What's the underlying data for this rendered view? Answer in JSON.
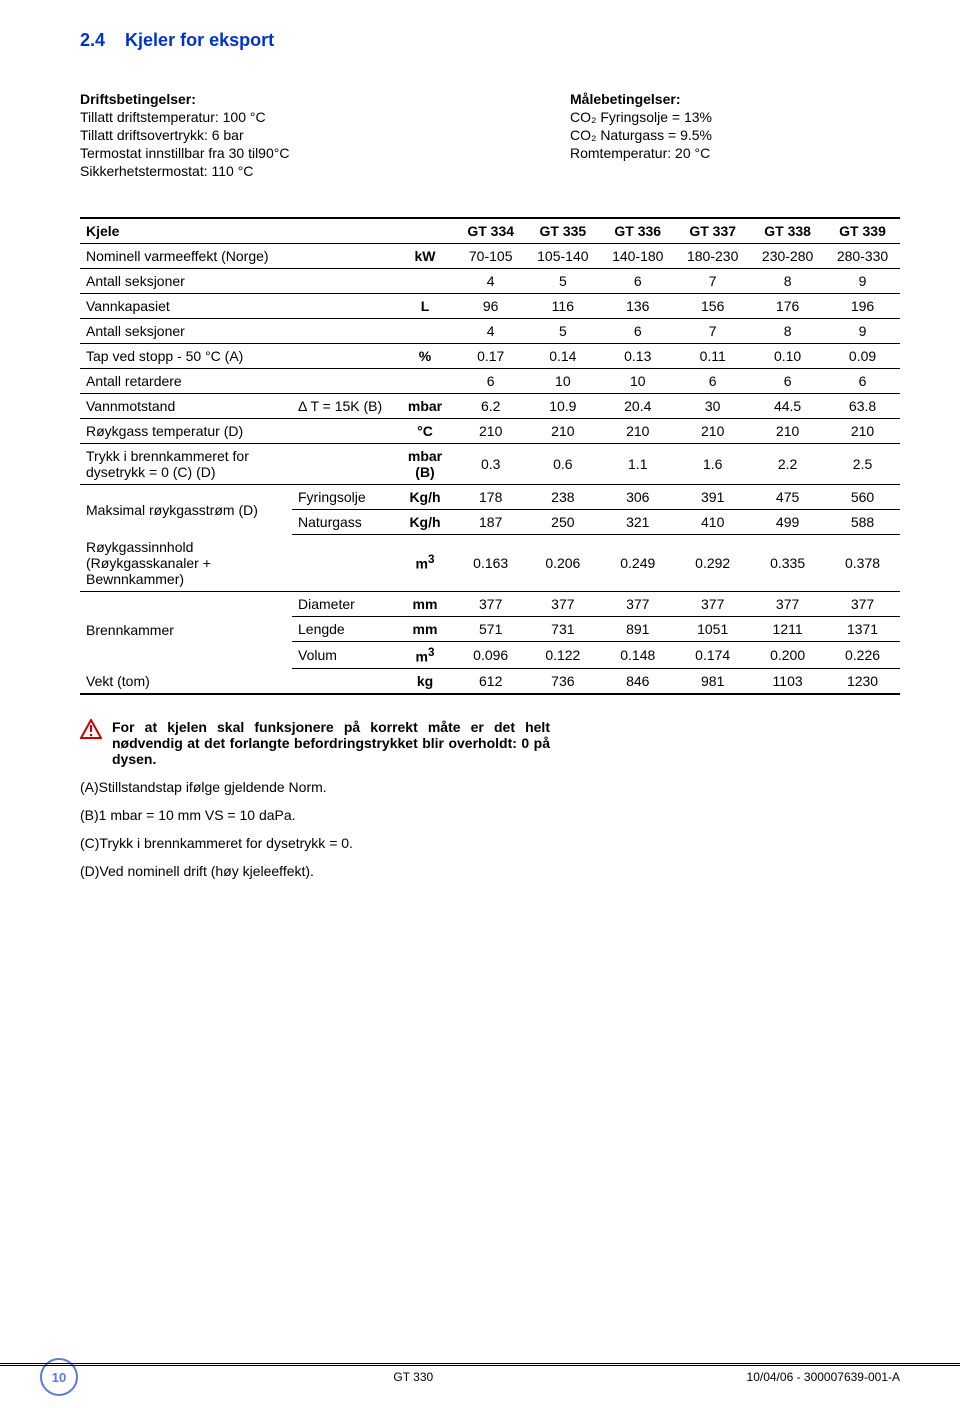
{
  "section": {
    "number_title": "2.4",
    "title": "Kjeler for eksport"
  },
  "left_block": {
    "heading": "Driftsbetingelser:",
    "lines": [
      "Tillatt driftstemperatur: 100 °C",
      "Tillatt driftsovertrykk: 6 bar",
      "Termostat innstillbar fra 30 til90°C",
      "Sikkerhetstermostat: 110 °C"
    ]
  },
  "right_block": {
    "heading": "Målebetingelser:",
    "lines": [
      "CO₂ Fyringsolje = 13%",
      "CO₂ Naturgass = 9.5%",
      "Romtemperatur: 20 °C"
    ]
  },
  "table": {
    "head": [
      "Kjele",
      "",
      "",
      "GT 334",
      "GT 335",
      "GT 336",
      "GT 337",
      "GT 338",
      "GT 339"
    ],
    "rows": [
      {
        "label": "Nominell varmeeffekt (Norge)",
        "sub": "",
        "unit": "kW",
        "vals": [
          "70-105",
          "105-140",
          "140-180",
          "180-230",
          "230-280",
          "280-330"
        ]
      },
      {
        "label": "Antall seksjoner",
        "sub": "",
        "unit": "",
        "vals": [
          "4",
          "5",
          "6",
          "7",
          "8",
          "9"
        ]
      },
      {
        "label": "Vannkapasiet",
        "sub": "",
        "unit": "L",
        "vals": [
          "96",
          "116",
          "136",
          "156",
          "176",
          "196"
        ]
      },
      {
        "label": "Antall seksjoner",
        "sub": "",
        "unit": "",
        "vals": [
          "4",
          "5",
          "6",
          "7",
          "8",
          "9"
        ]
      },
      {
        "label": "Tap ved stopp - 50 °C (A)",
        "sub": "",
        "unit": "%",
        "vals": [
          "0.17",
          "0.14",
          "0.13",
          "0.11",
          "0.10",
          "0.09"
        ]
      },
      {
        "label": "Antall retardere",
        "sub": "",
        "unit": "",
        "vals": [
          "6",
          "10",
          "10",
          "6",
          "6",
          "6"
        ]
      },
      {
        "label": "Vannmotstand",
        "sub": "Δ T = 15K (B)",
        "unit": "mbar",
        "vals": [
          "6.2",
          "10.9",
          "20.4",
          "30",
          "44.5",
          "63.8"
        ]
      },
      {
        "label": "Røykgass temperatur (D)",
        "sub": "",
        "unit": "°C",
        "vals": [
          "210",
          "210",
          "210",
          "210",
          "210",
          "210"
        ]
      },
      {
        "label": "Trykk i brennkammeret for dysetrykk = 0\n(C) (D)",
        "sub": "",
        "unit": "mbar\n(B)",
        "vals": [
          "0.3",
          "0.6",
          "1.1",
          "1.6",
          "2.2",
          "2.5"
        ]
      }
    ],
    "flow": {
      "label": "Maksimal røykgasstrøm (D)",
      "fr_label": "Fyringsolje",
      "fr_unit": "Kg/h",
      "fr_vals": [
        "178",
        "238",
        "306",
        "391",
        "475",
        "560"
      ],
      "ng_label": "Naturgass",
      "ng_unit": "Kg/h",
      "ng_vals": [
        "187",
        "250",
        "321",
        "410",
        "499",
        "588"
      ]
    },
    "smoke": {
      "label": "Røykgassinnhold\n(Røykgasskanaler +\nBewnnkammer)",
      "unit": "m³",
      "vals": [
        "0.163",
        "0.206",
        "0.249",
        "0.292",
        "0.335",
        "0.378"
      ]
    },
    "chamber": {
      "label": "Brennkammer",
      "dia_label": "Diameter",
      "dia_unit": "mm",
      "dia_vals": [
        "377",
        "377",
        "377",
        "377",
        "377",
        "377"
      ],
      "len_label": "Lengde",
      "len_unit": "mm",
      "len_vals": [
        "571",
        "731",
        "891",
        "1051",
        "1211",
        "1371"
      ],
      "vol_label": "Volum",
      "vol_unit": "m³",
      "vol_vals": [
        "0.096",
        "0.122",
        "0.148",
        "0.174",
        "0.200",
        "0.226"
      ]
    },
    "weight": {
      "label": "Vekt (tom)",
      "unit": "kg",
      "vals": [
        "612",
        "736",
        "846",
        "981",
        "1103",
        "1230"
      ]
    }
  },
  "notes": {
    "warning": "For at kjelen skal funksjonere på korrekt måte er det helt nødvendig at det forlangte befordringstrykket blir overholdt: 0 på dysen.",
    "a": "(A)Stillstandstap ifølge gjeldende Norm.",
    "b": "(B)1 mbar = 10 mm VS = 10 daPa.",
    "c": "(C)Trykk i brennkammeret for dysetrykk = 0.",
    "d": "(D)Ved nominell drift (høy kjeleeffekt)."
  },
  "footer": {
    "page": "10",
    "center": "GT 330",
    "right": "10/04/06 - 300007639-001-A"
  }
}
